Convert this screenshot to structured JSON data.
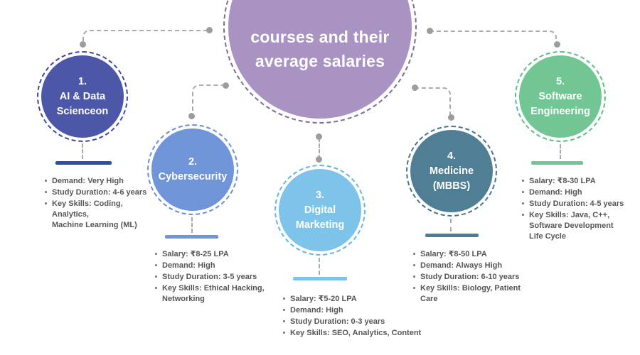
{
  "title": {
    "line1": "courses and their",
    "line2": "average salaries"
  },
  "colors": {
    "center_fill": "#a893c2",
    "center_dash": "#7e6b9c",
    "connector_gray": "#ababab",
    "dot_gray": "#9d9d9d",
    "detail_text": "#565656"
  },
  "courses": [
    {
      "number": "1.",
      "name": "AI & Data\nScienceon",
      "fill": "#4c57a7",
      "dash": "#3c49a4",
      "bar": "#2d4cae",
      "details": [
        "Demand: Very High",
        "Study Duration: 4-6 years",
        "Key Skills: Coding, Analytics,\nMachine Learning (ML)"
      ]
    },
    {
      "number": "2.",
      "name": "Cybersecurity",
      "fill": "#6f94d8",
      "dash": "#6590d6",
      "bar": "#7095d8",
      "details": [
        "Salary: ₹8-25 LPA",
        "Demand: High",
        "Study Duration: 3-5 years",
        "Key Skills: Ethical Hacking,\nNetworking"
      ]
    },
    {
      "number": "3.",
      "name": "Digital\nMarketing",
      "fill": "#7ec3ea",
      "dash": "#64b5e4",
      "bar": "#7ec3ea",
      "details": [
        "Salary: ₹5-20 LPA",
        "Demand: High",
        "Study Duration: 0-3 years",
        "Key Skills: SEO, Analytics, Content"
      ]
    },
    {
      "number": "4.",
      "name": "Medicine\n(MBBS)",
      "fill": "#507f95",
      "dash": "#44758d",
      "bar": "#4e7e96",
      "details": [
        "Salary: ₹8-50 LPA",
        "Demand: Always High",
        "Study Duration: 6-10 years",
        "Key Skills: Biology, Patient\nCare"
      ]
    },
    {
      "number": "5.",
      "name": "Software\nEngineering",
      "fill": "#72c694",
      "dash": "#5cbd85",
      "bar": "#72c694",
      "details": [
        "Salary: ₹8-30 LPA",
        "Demand: High",
        "Study Duration: 4-5 years",
        "Key Skills: Java, C++,\nSoftware Development\nLife Cycle"
      ]
    }
  ]
}
